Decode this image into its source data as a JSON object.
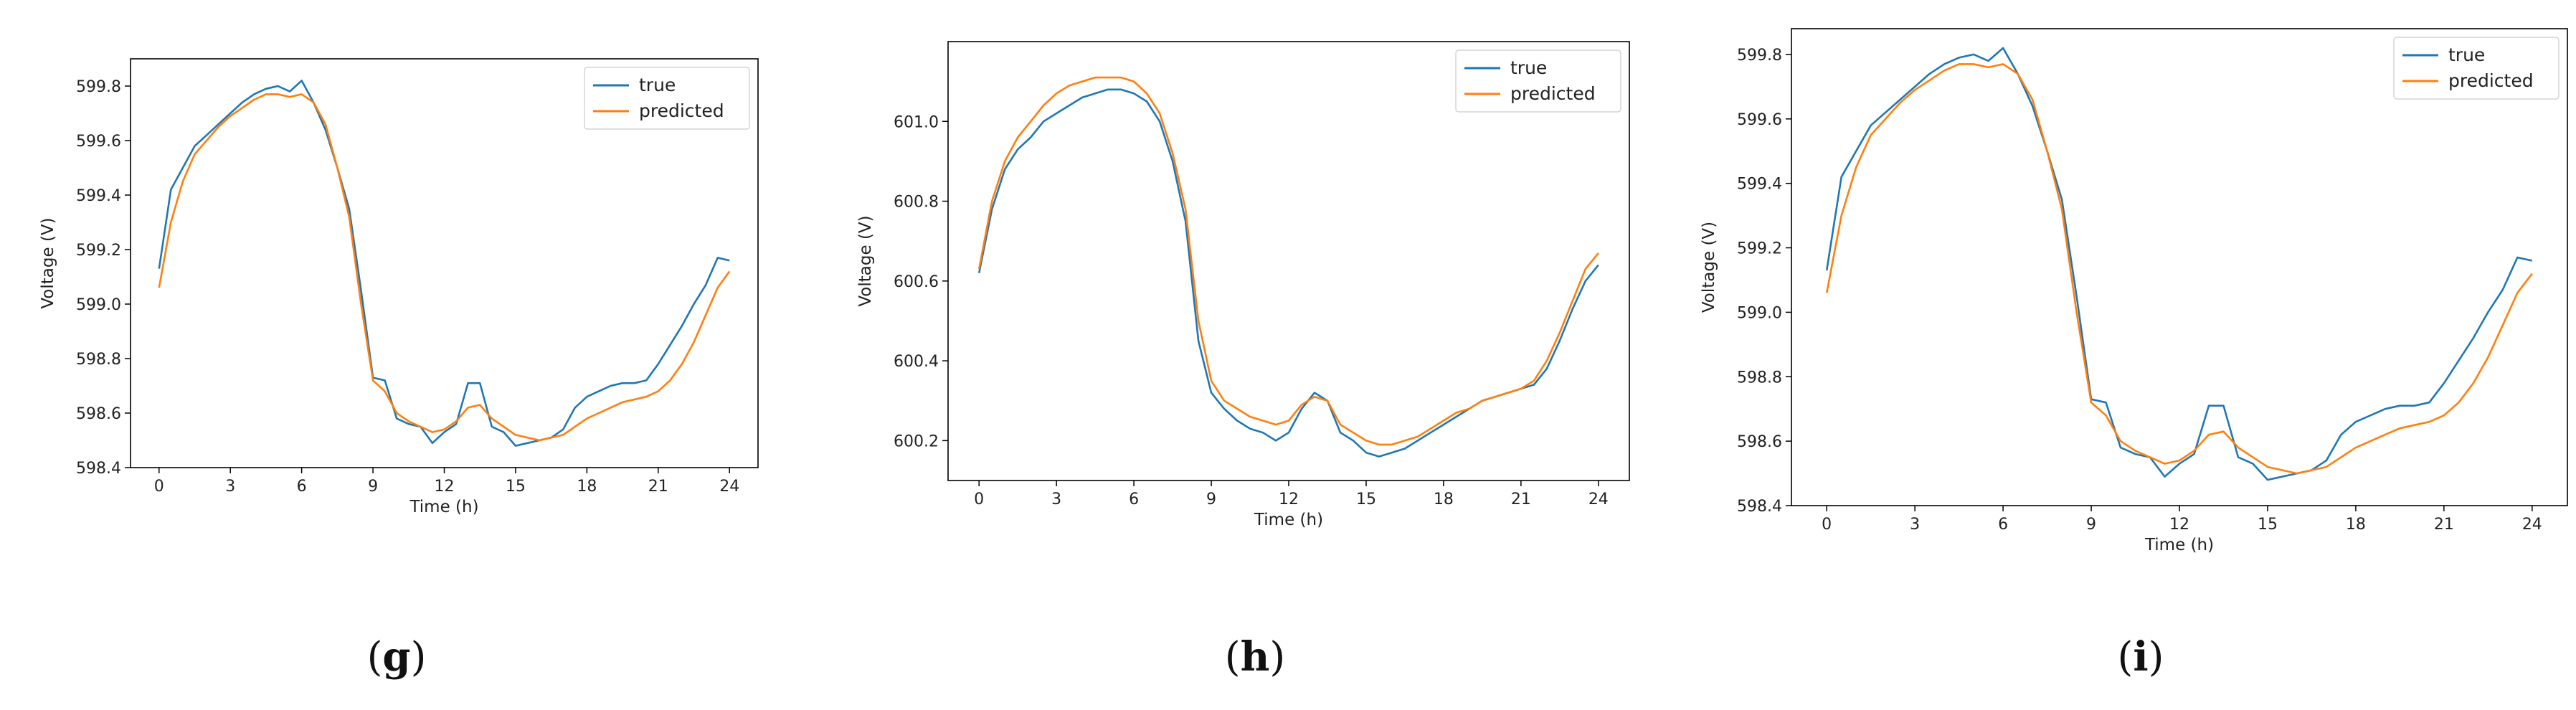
{
  "colors": {
    "true": "#1f77b4",
    "predicted": "#ff7f0e",
    "axes": "#000000"
  },
  "chart_data": [
    {
      "type": "line",
      "panel_label": "g",
      "xlabel": "Time (h)",
      "ylabel": "Voltage (V)",
      "xlim": [
        -1.2,
        25.2
      ],
      "ylim": [
        598.4,
        599.9
      ],
      "xticks": [
        0,
        3,
        6,
        9,
        12,
        15,
        18,
        21,
        24
      ],
      "xtick_labels": [
        "0",
        "3",
        "6",
        "9",
        "12",
        "15",
        "18",
        "21",
        "24"
      ],
      "yticks": [
        598.4,
        598.6,
        598.8,
        599.0,
        599.2,
        599.4,
        599.6,
        599.8
      ],
      "ytick_labels": [
        "598.4",
        "598.6",
        "598.8",
        "599.0",
        "599.2",
        "599.4",
        "599.6",
        "599.8"
      ],
      "legend": {
        "location": "top-right",
        "entries": [
          "true",
          "predicted"
        ]
      },
      "series": [
        {
          "name": "true",
          "x": [
            0,
            0.5,
            1,
            1.5,
            2,
            2.5,
            3,
            3.5,
            4,
            4.5,
            5,
            5.5,
            6,
            6.5,
            7,
            7.5,
            8,
            8.5,
            9,
            9.5,
            10,
            10.5,
            11,
            11.5,
            12,
            12.5,
            13,
            13.5,
            14,
            14.5,
            15,
            15.5,
            16,
            16.5,
            17,
            17.5,
            18,
            18.5,
            19,
            19.5,
            20,
            20.5,
            21,
            21.5,
            22,
            22.5,
            23,
            23.5,
            24
          ],
          "values": [
            599.13,
            599.42,
            599.5,
            599.58,
            599.62,
            599.66,
            599.7,
            599.74,
            599.77,
            599.79,
            599.8,
            599.78,
            599.82,
            599.74,
            599.64,
            599.5,
            599.35,
            599.05,
            598.73,
            598.72,
            598.58,
            598.56,
            598.55,
            598.49,
            598.53,
            598.56,
            598.71,
            598.71,
            598.55,
            598.53,
            598.48,
            598.49,
            598.5,
            598.51,
            598.54,
            598.62,
            598.66,
            598.68,
            598.7,
            598.71,
            598.71,
            598.72,
            598.78,
            598.85,
            598.92,
            599.0,
            599.07,
            599.17,
            599.16
          ]
        },
        {
          "name": "predicted",
          "x": [
            0,
            0.5,
            1,
            1.5,
            2,
            2.5,
            3,
            3.5,
            4,
            4.5,
            5,
            5.5,
            6,
            6.5,
            7,
            7.5,
            8,
            8.5,
            9,
            9.5,
            10,
            10.5,
            11,
            11.5,
            12,
            12.5,
            13,
            13.5,
            14,
            14.5,
            15,
            15.5,
            16,
            16.5,
            17,
            17.5,
            18,
            18.5,
            19,
            19.5,
            20,
            20.5,
            21,
            21.5,
            22,
            22.5,
            23,
            23.5,
            24
          ],
          "values": [
            599.06,
            599.3,
            599.45,
            599.55,
            599.6,
            599.65,
            599.69,
            599.72,
            599.75,
            599.77,
            599.77,
            599.76,
            599.77,
            599.74,
            599.66,
            599.5,
            599.32,
            599.0,
            598.72,
            598.68,
            598.6,
            598.57,
            598.55,
            598.53,
            598.54,
            598.57,
            598.62,
            598.63,
            598.58,
            598.55,
            598.52,
            598.51,
            598.5,
            598.51,
            598.52,
            598.55,
            598.58,
            598.6,
            598.62,
            598.64,
            598.65,
            598.66,
            598.68,
            598.72,
            598.78,
            598.86,
            598.96,
            599.06,
            599.12
          ]
        }
      ]
    },
    {
      "type": "line",
      "panel_label": "h",
      "xlabel": "Time (h)",
      "ylabel": "Voltage (V)",
      "xlim": [
        -1.2,
        25.2
      ],
      "ylim": [
        600.1,
        601.2
      ],
      "xticks": [
        0,
        3,
        6,
        9,
        12,
        15,
        18,
        21,
        24
      ],
      "xtick_labels": [
        "0",
        "3",
        "6",
        "9",
        "12",
        "15",
        "18",
        "21",
        "24"
      ],
      "yticks": [
        600.2,
        600.4,
        600.6,
        600.8,
        601.0
      ],
      "ytick_labels": [
        "600.2",
        "600.4",
        "600.6",
        "600.8",
        "601.0"
      ],
      "legend": {
        "location": "top-right",
        "entries": [
          "true",
          "predicted"
        ]
      },
      "series": [
        {
          "name": "true",
          "x": [
            0,
            0.5,
            1,
            1.5,
            2,
            2.5,
            3,
            3.5,
            4,
            4.5,
            5,
            5.5,
            6,
            6.5,
            7,
            7.5,
            8,
            8.5,
            9,
            9.5,
            10,
            10.5,
            11,
            11.5,
            12,
            12.5,
            13,
            13.5,
            14,
            14.5,
            15,
            15.5,
            16,
            16.5,
            17,
            17.5,
            18,
            18.5,
            19,
            19.5,
            20,
            20.5,
            21,
            21.5,
            22,
            22.5,
            23,
            23.5,
            24
          ],
          "values": [
            600.62,
            600.78,
            600.88,
            600.93,
            600.96,
            601.0,
            601.02,
            601.04,
            601.06,
            601.07,
            601.08,
            601.08,
            601.07,
            601.05,
            601.0,
            600.9,
            600.75,
            600.45,
            600.32,
            600.28,
            600.25,
            600.23,
            600.22,
            600.2,
            600.22,
            600.28,
            600.32,
            600.3,
            600.22,
            600.2,
            600.17,
            600.16,
            600.17,
            600.18,
            600.2,
            600.22,
            600.24,
            600.26,
            600.28,
            600.3,
            600.31,
            600.32,
            600.33,
            600.34,
            600.38,
            600.45,
            600.53,
            600.6,
            600.64
          ]
        },
        {
          "name": "predicted",
          "x": [
            0,
            0.5,
            1,
            1.5,
            2,
            2.5,
            3,
            3.5,
            4,
            4.5,
            5,
            5.5,
            6,
            6.5,
            7,
            7.5,
            8,
            8.5,
            9,
            9.5,
            10,
            10.5,
            11,
            11.5,
            12,
            12.5,
            13,
            13.5,
            14,
            14.5,
            15,
            15.5,
            16,
            16.5,
            17,
            17.5,
            18,
            18.5,
            19,
            19.5,
            20,
            20.5,
            21,
            21.5,
            22,
            22.5,
            23,
            23.5,
            24
          ],
          "values": [
            600.63,
            600.8,
            600.9,
            600.96,
            601.0,
            601.04,
            601.07,
            601.09,
            601.1,
            601.11,
            601.11,
            601.11,
            601.1,
            601.07,
            601.02,
            600.92,
            600.78,
            600.5,
            600.35,
            600.3,
            600.28,
            600.26,
            600.25,
            600.24,
            600.25,
            600.29,
            600.31,
            600.3,
            600.24,
            600.22,
            600.2,
            600.19,
            600.19,
            600.2,
            600.21,
            600.23,
            600.25,
            600.27,
            600.28,
            600.3,
            600.31,
            600.32,
            600.33,
            600.35,
            600.4,
            600.47,
            600.55,
            600.63,
            600.67
          ]
        }
      ]
    },
    {
      "type": "line",
      "panel_label": "i",
      "xlabel": "Time (h)",
      "ylabel": "Voltage (V)",
      "xlim": [
        -1.2,
        25.2
      ],
      "ylim": [
        598.4,
        599.88
      ],
      "xticks": [
        0,
        3,
        6,
        9,
        12,
        15,
        18,
        21,
        24
      ],
      "xtick_labels": [
        "0",
        "3",
        "6",
        "9",
        "12",
        "15",
        "18",
        "21",
        "24"
      ],
      "yticks": [
        598.4,
        598.6,
        598.8,
        599.0,
        599.2,
        599.4,
        599.6,
        599.8
      ],
      "ytick_labels": [
        "598.4",
        "598.6",
        "598.8",
        "599.0",
        "599.2",
        "599.4",
        "599.6",
        "599.8"
      ],
      "legend": {
        "location": "top-right",
        "entries": [
          "true",
          "predicted"
        ]
      },
      "series": [
        {
          "name": "true",
          "x": [
            0,
            0.5,
            1,
            1.5,
            2,
            2.5,
            3,
            3.5,
            4,
            4.5,
            5,
            5.5,
            6,
            6.5,
            7,
            7.5,
            8,
            8.5,
            9,
            9.5,
            10,
            10.5,
            11,
            11.5,
            12,
            12.5,
            13,
            13.5,
            14,
            14.5,
            15,
            15.5,
            16,
            16.5,
            17,
            17.5,
            18,
            18.5,
            19,
            19.5,
            20,
            20.5,
            21,
            21.5,
            22,
            22.5,
            23,
            23.5,
            24
          ],
          "values": [
            599.13,
            599.42,
            599.5,
            599.58,
            599.62,
            599.66,
            599.7,
            599.74,
            599.77,
            599.79,
            599.8,
            599.78,
            599.82,
            599.74,
            599.64,
            599.5,
            599.35,
            599.05,
            598.73,
            598.72,
            598.58,
            598.56,
            598.55,
            598.49,
            598.53,
            598.56,
            598.71,
            598.71,
            598.55,
            598.53,
            598.48,
            598.49,
            598.5,
            598.51,
            598.54,
            598.62,
            598.66,
            598.68,
            598.7,
            598.71,
            598.71,
            598.72,
            598.78,
            598.85,
            598.92,
            599.0,
            599.07,
            599.17,
            599.16
          ]
        },
        {
          "name": "predicted",
          "x": [
            0,
            0.5,
            1,
            1.5,
            2,
            2.5,
            3,
            3.5,
            4,
            4.5,
            5,
            5.5,
            6,
            6.5,
            7,
            7.5,
            8,
            8.5,
            9,
            9.5,
            10,
            10.5,
            11,
            11.5,
            12,
            12.5,
            13,
            13.5,
            14,
            14.5,
            15,
            15.5,
            16,
            16.5,
            17,
            17.5,
            18,
            18.5,
            19,
            19.5,
            20,
            20.5,
            21,
            21.5,
            22,
            22.5,
            23,
            23.5,
            24
          ],
          "values": [
            599.06,
            599.3,
            599.45,
            599.55,
            599.6,
            599.65,
            599.69,
            599.72,
            599.75,
            599.77,
            599.77,
            599.76,
            599.77,
            599.74,
            599.66,
            599.5,
            599.32,
            599.0,
            598.72,
            598.68,
            598.6,
            598.57,
            598.55,
            598.53,
            598.54,
            598.57,
            598.62,
            598.63,
            598.58,
            598.55,
            598.52,
            598.51,
            598.5,
            598.51,
            598.52,
            598.55,
            598.58,
            598.6,
            598.62,
            598.64,
            598.65,
            598.66,
            598.68,
            598.72,
            598.78,
            598.86,
            598.96,
            599.06,
            599.12
          ]
        }
      ]
    }
  ]
}
